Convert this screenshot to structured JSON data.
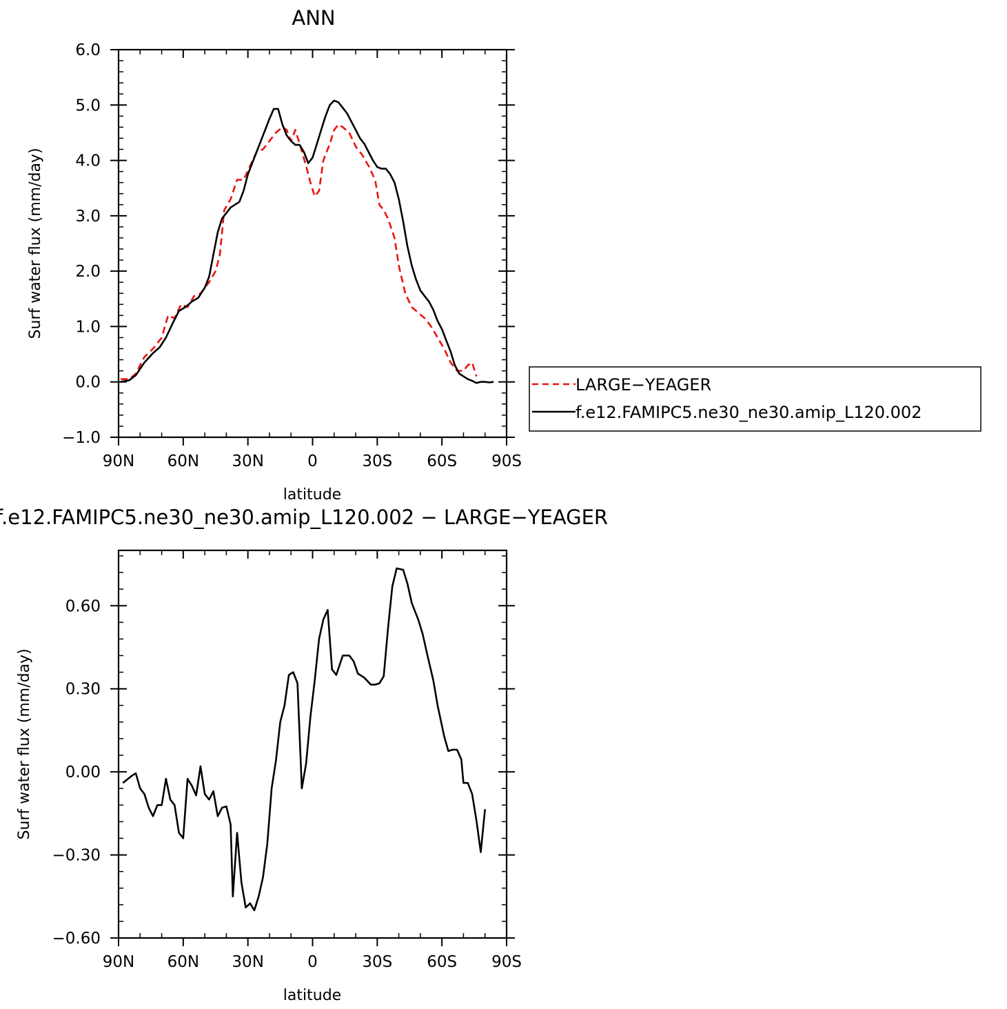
{
  "chart_data": [
    {
      "type": "line",
      "title": "ANN",
      "xlabel": "latitude",
      "ylabel": "Surf  water  flux  (mm/day)",
      "xlim": [
        -90,
        90
      ],
      "ylim": [
        -1.0,
        6.0
      ],
      "x_ticks": [
        -90,
        -60,
        -30,
        0,
        30,
        60,
        90
      ],
      "x_tick_labels": [
        "90N",
        "60N",
        "30N",
        "0",
        "30S",
        "60S",
        "90S"
      ],
      "y_ticks": [
        -1.0,
        0.0,
        1.0,
        2.0,
        3.0,
        4.0,
        5.0,
        6.0
      ],
      "y_tick_labels": [
        "−1.0",
        "0.0",
        "1.0",
        "2.0",
        "3.0",
        "4.0",
        "5.0",
        "6.0"
      ],
      "legend_position": "right",
      "series": [
        {
          "name": "LARGE−YEAGER",
          "color": "#e8140e",
          "dash": "dashed",
          "points": [
            [
              -89,
              0.05
            ],
            [
              -85,
              0.05
            ],
            [
              -82,
              0.15
            ],
            [
              -78,
              0.45
            ],
            [
              -74,
              0.6
            ],
            [
              -70,
              0.8
            ],
            [
              -67,
              1.2
            ],
            [
              -64,
              1.15
            ],
            [
              -61,
              1.4
            ],
            [
              -58,
              1.35
            ],
            [
              -55,
              1.55
            ],
            [
              -52,
              1.6
            ],
            [
              -48,
              1.8
            ],
            [
              -45,
              2.0
            ],
            [
              -43,
              2.3
            ],
            [
              -41,
              3.1
            ],
            [
              -38,
              3.3
            ],
            [
              -35,
              3.65
            ],
            [
              -32,
              3.65
            ],
            [
              -29,
              3.9
            ],
            [
              -26,
              4.15
            ],
            [
              -23,
              4.2
            ],
            [
              -20,
              4.35
            ],
            [
              -17,
              4.5
            ],
            [
              -14,
              4.6
            ],
            [
              -12,
              4.55
            ],
            [
              -10,
              4.35
            ],
            [
              -8,
              4.55
            ],
            [
              -6,
              4.3
            ],
            [
              -3,
              3.9
            ],
            [
              -1,
              3.6
            ],
            [
              1,
              3.35
            ],
            [
              3,
              3.45
            ],
            [
              5,
              4.0
            ],
            [
              8,
              4.3
            ],
            [
              10,
              4.55
            ],
            [
              12,
              4.65
            ],
            [
              14,
              4.6
            ],
            [
              17,
              4.5
            ],
            [
              20,
              4.25
            ],
            [
              23,
              4.1
            ],
            [
              26,
              3.9
            ],
            [
              29,
              3.65
            ],
            [
              31,
              3.2
            ],
            [
              33,
              3.1
            ],
            [
              35,
              2.95
            ],
            [
              38,
              2.6
            ],
            [
              40,
              2.1
            ],
            [
              43,
              1.6
            ],
            [
              46,
              1.35
            ],
            [
              49,
              1.25
            ],
            [
              52,
              1.15
            ],
            [
              55,
              1.0
            ],
            [
              58,
              0.8
            ],
            [
              61,
              0.6
            ],
            [
              64,
              0.35
            ],
            [
              67,
              0.2
            ],
            [
              70,
              0.2
            ],
            [
              72,
              0.3
            ],
            [
              74,
              0.35
            ],
            [
              76,
              0.1
            ]
          ]
        },
        {
          "name": "f.e12.FAMIPC5.ne30_ne30.amip_L120.002",
          "color": "#000000",
          "dash": "solid",
          "points": [
            [
              -89,
              0.0
            ],
            [
              -85,
              0.03
            ],
            [
              -82,
              0.12
            ],
            [
              -78,
              0.35
            ],
            [
              -74,
              0.52
            ],
            [
              -71,
              0.62
            ],
            [
              -68,
              0.8
            ],
            [
              -65,
              1.05
            ],
            [
              -62,
              1.28
            ],
            [
              -59,
              1.35
            ],
            [
              -56,
              1.45
            ],
            [
              -53,
              1.52
            ],
            [
              -50,
              1.7
            ],
            [
              -48,
              1.9
            ],
            [
              -46,
              2.3
            ],
            [
              -44,
              2.7
            ],
            [
              -42,
              2.95
            ],
            [
              -40,
              3.05
            ],
            [
              -38,
              3.15
            ],
            [
              -36,
              3.2
            ],
            [
              -34,
              3.25
            ],
            [
              -32,
              3.45
            ],
            [
              -30,
              3.75
            ],
            [
              -28,
              3.95
            ],
            [
              -26,
              4.15
            ],
            [
              -24,
              4.35
            ],
            [
              -22,
              4.55
            ],
            [
              -20,
              4.75
            ],
            [
              -18,
              4.93
            ],
            [
              -16,
              4.93
            ],
            [
              -14,
              4.65
            ],
            [
              -12,
              4.45
            ],
            [
              -10,
              4.35
            ],
            [
              -8,
              4.28
            ],
            [
              -6,
              4.28
            ],
            [
              -4,
              4.15
            ],
            [
              -2,
              3.95
            ],
            [
              0,
              4.05
            ],
            [
              2,
              4.3
            ],
            [
              4,
              4.55
            ],
            [
              6,
              4.8
            ],
            [
              8,
              5.0
            ],
            [
              10,
              5.08
            ],
            [
              12,
              5.05
            ],
            [
              14,
              4.95
            ],
            [
              16,
              4.85
            ],
            [
              18,
              4.7
            ],
            [
              20,
              4.55
            ],
            [
              22,
              4.4
            ],
            [
              24,
              4.3
            ],
            [
              26,
              4.15
            ],
            [
              28,
              4.0
            ],
            [
              30,
              3.88
            ],
            [
              32,
              3.85
            ],
            [
              34,
              3.85
            ],
            [
              36,
              3.75
            ],
            [
              38,
              3.6
            ],
            [
              40,
              3.3
            ],
            [
              42,
              2.9
            ],
            [
              44,
              2.45
            ],
            [
              46,
              2.1
            ],
            [
              48,
              1.85
            ],
            [
              50,
              1.65
            ],
            [
              52,
              1.55
            ],
            [
              54,
              1.45
            ],
            [
              56,
              1.3
            ],
            [
              58,
              1.1
            ],
            [
              60,
              0.95
            ],
            [
              62,
              0.75
            ],
            [
              64,
              0.55
            ],
            [
              66,
              0.3
            ],
            [
              68,
              0.15
            ],
            [
              70,
              0.1
            ],
            [
              72,
              0.05
            ],
            [
              74,
              0.02
            ],
            [
              76,
              -0.02
            ],
            [
              78,
              0.0
            ],
            [
              80,
              0.0
            ],
            [
              82,
              -0.01
            ],
            [
              84,
              0.0
            ]
          ]
        }
      ]
    },
    {
      "type": "line",
      "title": "f.e12.FAMIPC5.ne30_ne30.amip_L120.002  −  LARGE−YEAGER",
      "xlabel": "latitude",
      "ylabel": "Surf  water  flux  (mm/day)",
      "xlim": [
        -90,
        90
      ],
      "ylim": [
        -0.6,
        0.8
      ],
      "x_ticks": [
        -90,
        -60,
        -30,
        0,
        30,
        60,
        90
      ],
      "x_tick_labels": [
        "90N",
        "60N",
        "30N",
        "0",
        "30S",
        "60S",
        "90S"
      ],
      "y_ticks": [
        -0.6,
        -0.3,
        0.0,
        0.3,
        0.6
      ],
      "y_tick_labels": [
        "−0.60",
        "−0.30",
        "0.00",
        "0.30",
        "0.60"
      ],
      "series": [
        {
          "color": "#000000",
          "dash": "solid",
          "points": [
            [
              -88,
              -0.04
            ],
            [
              -84,
              -0.015
            ],
            [
              -82,
              -0.005
            ],
            [
              -80,
              -0.06
            ],
            [
              -78,
              -0.08
            ],
            [
              -76,
              -0.13
            ],
            [
              -74,
              -0.16
            ],
            [
              -72,
              -0.12
            ],
            [
              -70,
              -0.12
            ],
            [
              -68,
              -0.025
            ],
            [
              -66,
              -0.1
            ],
            [
              -64,
              -0.12
            ],
            [
              -62,
              -0.22
            ],
            [
              -60,
              -0.24
            ],
            [
              -58,
              -0.025
            ],
            [
              -56,
              -0.05
            ],
            [
              -54,
              -0.085
            ],
            [
              -52,
              0.02
            ],
            [
              -50,
              -0.08
            ],
            [
              -48,
              -0.1
            ],
            [
              -46,
              -0.07
            ],
            [
              -44,
              -0.16
            ],
            [
              -42,
              -0.13
            ],
            [
              -40,
              -0.125
            ],
            [
              -38,
              -0.19
            ],
            [
              -37,
              -0.45
            ],
            [
              -35,
              -0.22
            ],
            [
              -33,
              -0.4
            ],
            [
              -31,
              -0.49
            ],
            [
              -29,
              -0.475
            ],
            [
              -27,
              -0.5
            ],
            [
              -25,
              -0.45
            ],
            [
              -23,
              -0.38
            ],
            [
              -21,
              -0.26
            ],
            [
              -19,
              -0.06
            ],
            [
              -17,
              0.04
            ],
            [
              -15,
              0.18
            ],
            [
              -13,
              0.24
            ],
            [
              -11,
              0.35
            ],
            [
              -9,
              0.36
            ],
            [
              -7,
              0.32
            ],
            [
              -5,
              -0.06
            ],
            [
              -3,
              0.03
            ],
            [
              -1,
              0.2
            ],
            [
              1,
              0.33
            ],
            [
              3,
              0.48
            ],
            [
              5,
              0.55
            ],
            [
              7,
              0.585
            ],
            [
              9,
              0.37
            ],
            [
              11,
              0.35
            ],
            [
              14,
              0.42
            ],
            [
              17,
              0.42
            ],
            [
              19,
              0.4
            ],
            [
              21,
              0.355
            ],
            [
              24,
              0.34
            ],
            [
              27,
              0.315
            ],
            [
              29,
              0.315
            ],
            [
              31,
              0.32
            ],
            [
              33,
              0.345
            ],
            [
              35,
              0.52
            ],
            [
              37,
              0.67
            ],
            [
              39,
              0.735
            ],
            [
              42,
              0.73
            ],
            [
              44,
              0.68
            ],
            [
              46,
              0.61
            ],
            [
              49,
              0.55
            ],
            [
              51,
              0.5
            ],
            [
              53,
              0.43
            ],
            [
              56,
              0.33
            ],
            [
              58,
              0.24
            ],
            [
              61,
              0.13
            ],
            [
              63,
              0.075
            ],
            [
              65,
              0.08
            ],
            [
              67,
              0.08
            ],
            [
              69,
              0.045
            ],
            [
              70,
              -0.04
            ],
            [
              72,
              -0.04
            ],
            [
              74,
              -0.08
            ],
            [
              76,
              -0.175
            ],
            [
              78,
              -0.29
            ],
            [
              80,
              -0.135
            ]
          ]
        }
      ]
    }
  ]
}
